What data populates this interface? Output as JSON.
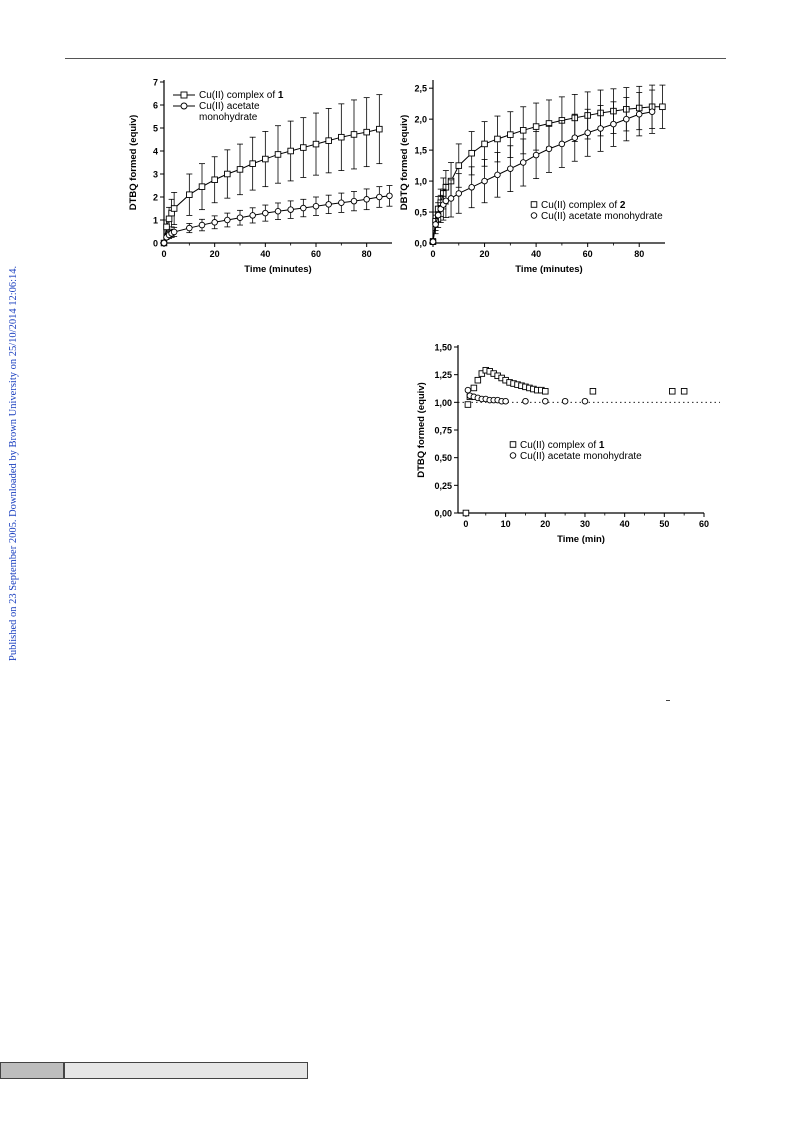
{
  "page": {
    "side_text": "Published on 23 September 2005. Downloaded by Brown University on 25/10/2014 12:06:14."
  },
  "chart_data": [
    {
      "type": "line",
      "xlabel": "Time (minutes)",
      "ylabel": "DTBQ formed (equiv)",
      "xlim": [
        0,
        90
      ],
      "ylim": [
        0,
        7
      ],
      "xticks": [
        "0",
        "20",
        "40",
        "60",
        "80"
      ],
      "yticks": [
        "0",
        "1",
        "2",
        "3",
        "4",
        "5",
        "6",
        "7"
      ],
      "legend_position": "top-left",
      "series": [
        {
          "name": "Cu(II) complex of 1",
          "marker": "square",
          "x": [
            0,
            1,
            2,
            3,
            4,
            10,
            15,
            20,
            25,
            30,
            35,
            40,
            45,
            50,
            55,
            60,
            65,
            70,
            75,
            80,
            85
          ],
          "y": [
            0,
            0.7,
            1.05,
            1.3,
            1.5,
            2.1,
            2.45,
            2.75,
            3.0,
            3.2,
            3.45,
            3.65,
            3.85,
            4.0,
            4.15,
            4.3,
            4.45,
            4.6,
            4.72,
            4.82,
            4.95
          ],
          "error": [
            0,
            0.3,
            0.5,
            0.6,
            0.7,
            0.9,
            1.0,
            1.0,
            1.05,
            1.1,
            1.15,
            1.2,
            1.25,
            1.3,
            1.3,
            1.35,
            1.4,
            1.45,
            1.5,
            1.5,
            1.5
          ]
        },
        {
          "name": "Cu(II) acetate monohydrate",
          "marker": "circle",
          "x": [
            0,
            1,
            2,
            3,
            4,
            10,
            15,
            20,
            25,
            30,
            35,
            40,
            45,
            50,
            55,
            60,
            65,
            70,
            75,
            80,
            85,
            89
          ],
          "y": [
            0,
            0.25,
            0.35,
            0.42,
            0.48,
            0.65,
            0.78,
            0.9,
            1.0,
            1.1,
            1.2,
            1.3,
            1.38,
            1.45,
            1.52,
            1.6,
            1.68,
            1.75,
            1.82,
            1.9,
            2.0,
            2.05
          ],
          "error": [
            0,
            0.1,
            0.15,
            0.18,
            0.2,
            0.2,
            0.25,
            0.28,
            0.3,
            0.32,
            0.33,
            0.35,
            0.36,
            0.38,
            0.38,
            0.4,
            0.4,
            0.42,
            0.42,
            0.45,
            0.45,
            0.45
          ]
        }
      ]
    },
    {
      "type": "line",
      "xlabel": "Time (minutes)",
      "ylabel": "DBTQ formed (equiv)",
      "xlim": [
        0,
        90
      ],
      "ylim": [
        0,
        2.6
      ],
      "xticks": [
        "0",
        "20",
        "40",
        "60",
        "80"
      ],
      "yticks": [
        "0,0",
        "0,5",
        "1,0",
        "1,5",
        "2,0",
        "2,5"
      ],
      "legend_position": "bottom-right",
      "series": [
        {
          "name": "Cu(II) complex of 2",
          "marker": "square",
          "x": [
            0,
            1,
            2,
            3,
            4,
            5,
            7,
            10,
            15,
            20,
            25,
            30,
            35,
            40,
            45,
            50,
            55,
            60,
            65,
            70,
            75,
            80,
            85,
            89
          ],
          "y": [
            0.02,
            0.35,
            0.55,
            0.65,
            0.8,
            0.9,
            1.0,
            1.25,
            1.45,
            1.6,
            1.68,
            1.75,
            1.82,
            1.88,
            1.93,
            1.98,
            2.02,
            2.06,
            2.1,
            2.13,
            2.16,
            2.18,
            2.2,
            2.2
          ],
          "error": [
            0.05,
            0.15,
            0.2,
            0.22,
            0.25,
            0.27,
            0.3,
            0.35,
            0.35,
            0.36,
            0.37,
            0.37,
            0.38,
            0.38,
            0.38,
            0.38,
            0.38,
            0.38,
            0.37,
            0.36,
            0.35,
            0.35,
            0.35,
            0.35
          ]
        },
        {
          "name": "Cu(II) acetate monohydrate",
          "marker": "circle",
          "x": [
            0,
            1,
            2,
            3,
            4,
            5,
            7,
            10,
            15,
            20,
            25,
            30,
            35,
            40,
            45,
            50,
            55,
            60,
            65,
            70,
            75,
            80,
            85
          ],
          "y": [
            0.02,
            0.3,
            0.45,
            0.55,
            0.62,
            0.68,
            0.72,
            0.8,
            0.9,
            1.0,
            1.1,
            1.2,
            1.3,
            1.42,
            1.52,
            1.6,
            1.7,
            1.78,
            1.85,
            1.92,
            2.0,
            2.08,
            2.12
          ],
          "error": [
            0.05,
            0.15,
            0.2,
            0.22,
            0.25,
            0.27,
            0.3,
            0.32,
            0.33,
            0.35,
            0.36,
            0.37,
            0.38,
            0.38,
            0.38,
            0.38,
            0.38,
            0.38,
            0.37,
            0.36,
            0.35,
            0.35,
            0.35
          ]
        }
      ]
    },
    {
      "type": "scatter",
      "xlabel": "Time (min)",
      "ylabel": "DTBQ formed (equiv)",
      "xlim": [
        -2,
        60
      ],
      "ylim": [
        0,
        1.5
      ],
      "xticks": [
        "0",
        "10",
        "20",
        "30",
        "40",
        "50",
        "60"
      ],
      "yticks": [
        "0,00",
        "0,25",
        "0,50",
        "0,75",
        "1,00",
        "1,25",
        "1,50"
      ],
      "reference_line": 1.0,
      "legend_position": "center-right",
      "series": [
        {
          "name": "Cu(II) complex of 1",
          "marker": "square",
          "x": [
            0,
            0.5,
            1,
            2,
            3,
            4,
            5,
            6,
            7,
            8,
            9,
            10,
            11,
            12,
            13,
            14,
            15,
            16,
            17,
            18,
            19,
            20,
            32,
            52,
            55
          ],
          "y": [
            0,
            0.98,
            1.05,
            1.13,
            1.2,
            1.26,
            1.29,
            1.28,
            1.26,
            1.24,
            1.22,
            1.2,
            1.18,
            1.17,
            1.16,
            1.15,
            1.14,
            1.13,
            1.12,
            1.11,
            1.11,
            1.1,
            1.1,
            1.1,
            1.1
          ]
        },
        {
          "name": "Cu(II) acetate monohydrate",
          "marker": "circle",
          "x": [
            0.5,
            1,
            2,
            3,
            4,
            5,
            6,
            7,
            8,
            9,
            10,
            15,
            20,
            25,
            30
          ],
          "y": [
            1.11,
            1.06,
            1.05,
            1.04,
            1.03,
            1.03,
            1.02,
            1.02,
            1.02,
            1.01,
            1.01,
            1.01,
            1.01,
            1.01,
            1.01
          ]
        }
      ]
    }
  ]
}
